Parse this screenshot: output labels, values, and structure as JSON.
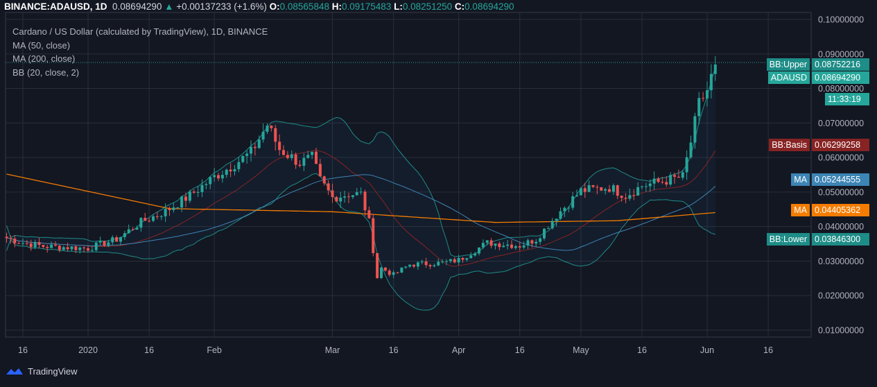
{
  "header": {
    "symbol": "BINANCE:ADAUSD, 1D",
    "last": "0.08694290",
    "change": "+0.00137233 (+1.6%)",
    "o_label": "O:",
    "o": "0.08565848",
    "h_label": "H:",
    "h": "0.09175483",
    "l_label": "L:",
    "l": "0.08251250",
    "c_label": "C:",
    "c": "0.08694290"
  },
  "legend": {
    "title": "Cardano / US Dollar (calculated by TradingView), 1D, BINANCE",
    "ma50": "MA (50, close)",
    "ma200": "MA (200, close)",
    "bb": "BB (20, close, 2)"
  },
  "tags": [
    {
      "label": "BB:Upper",
      "value": "0.08752216",
      "color": "#1e8c87",
      "price": 0.08752216
    },
    {
      "label": "ADAUSD",
      "value": "0.08694290",
      "color": "#26a69a",
      "price": 0.0869429
    },
    {
      "label": "",
      "value": "11:33:19",
      "color": "#26a69a",
      "price": 0.0857
    },
    {
      "label": "BB:Basis",
      "value": "0.06299258",
      "color": "#872323",
      "price": 0.06299258
    },
    {
      "label": "MA",
      "value": "0.05244555",
      "color": "#3d85b5",
      "price": 0.05244555
    },
    {
      "label": "MA",
      "value": "0.04405362",
      "color": "#f57c00",
      "price": 0.04405362
    },
    {
      "label": "BB:Lower",
      "value": "0.03846300",
      "color": "#1e8c87",
      "price": 0.038463
    }
  ],
  "footer": {
    "brand": "TradingView"
  },
  "colors": {
    "up": "#26a69a",
    "down": "#ef5350",
    "ma50": "#3d85b5",
    "ma200": "#f57c00",
    "bb": "#1e8c87",
    "basis": "#872323"
  },
  "chart_data": {
    "type": "candlestick",
    "title": "Cardano / US Dollar, 1D, BINANCE",
    "start_date": "2019-12-12",
    "ylim": [
      0.005,
      0.105
    ],
    "yticks": [
      "0.10000000",
      "0.09000000",
      "0.08000000",
      "0.07000000",
      "0.06000000",
      "0.05000000",
      "0.04000000",
      "0.03000000",
      "0.02000000",
      "0.01000000"
    ],
    "yvalues": [
      0.1,
      0.09,
      0.08,
      0.07,
      0.06,
      0.05,
      0.04,
      0.03,
      0.02,
      0.01
    ],
    "xticks": [
      {
        "label": "16",
        "day": 4
      },
      {
        "label": "2020",
        "day": 20
      },
      {
        "label": "16",
        "day": 35
      },
      {
        "label": "Feb",
        "day": 51
      },
      {
        "label": "Mar",
        "day": 80
      },
      {
        "label": "16",
        "day": 95
      },
      {
        "label": "Apr",
        "day": 111
      },
      {
        "label": "16",
        "day": 126
      },
      {
        "label": "May",
        "day": 141
      },
      {
        "label": "16",
        "day": 156
      },
      {
        "label": "Jun",
        "day": 172
      },
      {
        "label": "16",
        "day": 187
      }
    ],
    "close_keypoints": [
      [
        0,
        0.0367
      ],
      [
        4,
        0.0353
      ],
      [
        9,
        0.0343
      ],
      [
        20,
        0.0337
      ],
      [
        27,
        0.0363
      ],
      [
        33,
        0.0413
      ],
      [
        39,
        0.0444
      ],
      [
        45,
        0.049
      ],
      [
        51,
        0.0544
      ],
      [
        55,
        0.0574
      ],
      [
        60,
        0.0614
      ],
      [
        64,
        0.0695
      ],
      [
        67,
        0.0624
      ],
      [
        72,
        0.0584
      ],
      [
        75,
        0.06
      ],
      [
        77,
        0.0534
      ],
      [
        80,
        0.0484
      ],
      [
        84,
        0.0494
      ],
      [
        87,
        0.0494
      ],
      [
        89,
        0.0413
      ],
      [
        91,
        0.0253
      ],
      [
        92,
        0.028
      ],
      [
        95,
        0.026
      ],
      [
        99,
        0.029
      ],
      [
        107,
        0.0295
      ],
      [
        111,
        0.0303
      ],
      [
        118,
        0.0353
      ],
      [
        126,
        0.0345
      ],
      [
        130,
        0.0363
      ],
      [
        135,
        0.0433
      ],
      [
        141,
        0.0504
      ],
      [
        148,
        0.0514
      ],
      [
        152,
        0.049
      ],
      [
        156,
        0.0518
      ],
      [
        162,
        0.0534
      ],
      [
        166,
        0.0544
      ],
      [
        168,
        0.0645
      ],
      [
        170,
        0.0755
      ],
      [
        172,
        0.0795
      ],
      [
        174,
        0.0869
      ]
    ],
    "ma200_keypoints": [
      [
        0,
        0.0552
      ],
      [
        40,
        0.0452
      ],
      [
        80,
        0.0443
      ],
      [
        120,
        0.0412
      ],
      [
        150,
        0.0417
      ],
      [
        174,
        0.04405
      ]
    ],
    "last_price": 0.0869429
  }
}
